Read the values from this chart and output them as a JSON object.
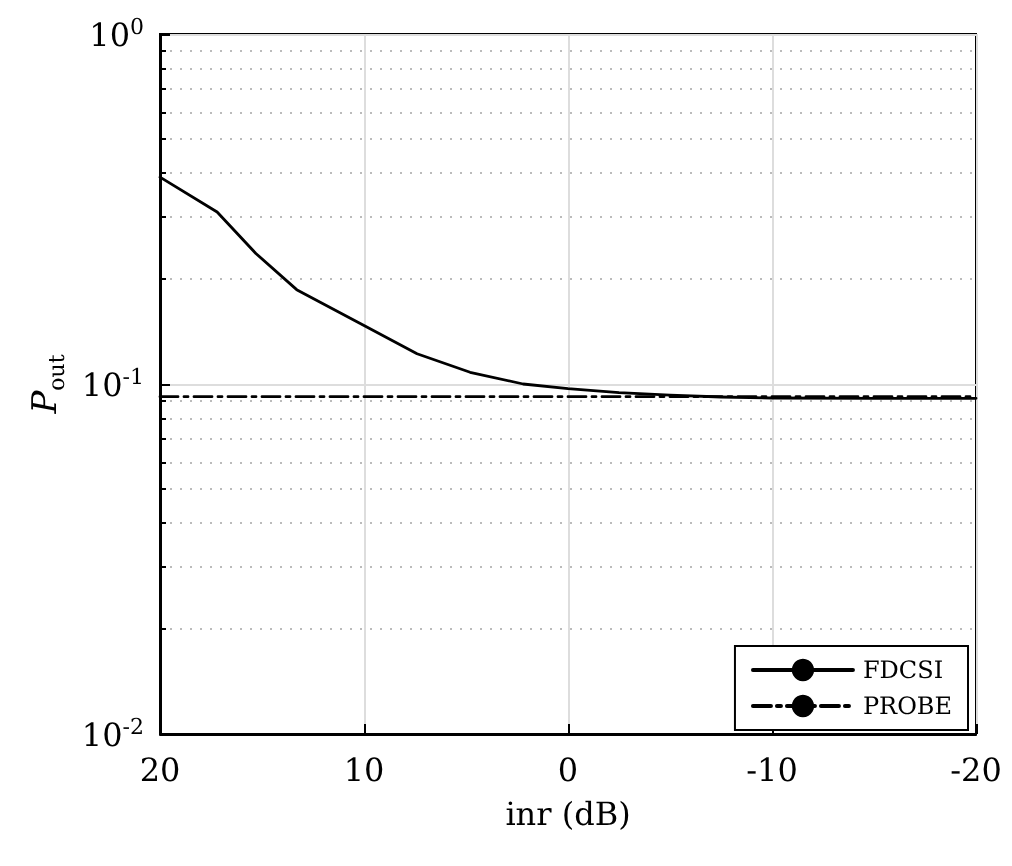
{
  "chart_data": {
    "type": "line",
    "xlabel": "inr (dB)",
    "ylabel": "P$_{out}$",
    "x": [
      20,
      17.2,
      15.3,
      13.3,
      10,
      7.4,
      4.8,
      2.2,
      0,
      -2.5,
      -5,
      -7.5,
      -10,
      -15,
      -20
    ],
    "series": [
      {
        "name": "FDCSI",
        "color": "#000000",
        "line_style": "solid",
        "values": [
          0.39,
          0.31,
          0.236,
          0.186,
          0.147,
          0.122,
          0.108,
          0.1,
          0.097,
          0.0945,
          0.093,
          0.0918,
          0.0912,
          0.091,
          0.091
        ]
      },
      {
        "name": "PROBE",
        "color": "#000000",
        "line_style": "dashdot",
        "x": [
          20,
          -20
        ],
        "values": [
          0.092,
          0.092
        ]
      }
    ],
    "xlim": [
      20,
      -20
    ],
    "xticks": [
      20,
      10,
      0,
      -10,
      -20
    ],
    "log": "y",
    "ylim": [
      0.01,
      1
    ],
    "yticks": [
      {
        "value": 0.01,
        "label": "10$^{-2}$"
      },
      {
        "value": 0.1,
        "label": "10$^{-1}$"
      },
      {
        "value": 1,
        "label": "10$^{0}$"
      }
    ],
    "grid": true,
    "legend": "bottom right",
    "marker": "none"
  }
}
